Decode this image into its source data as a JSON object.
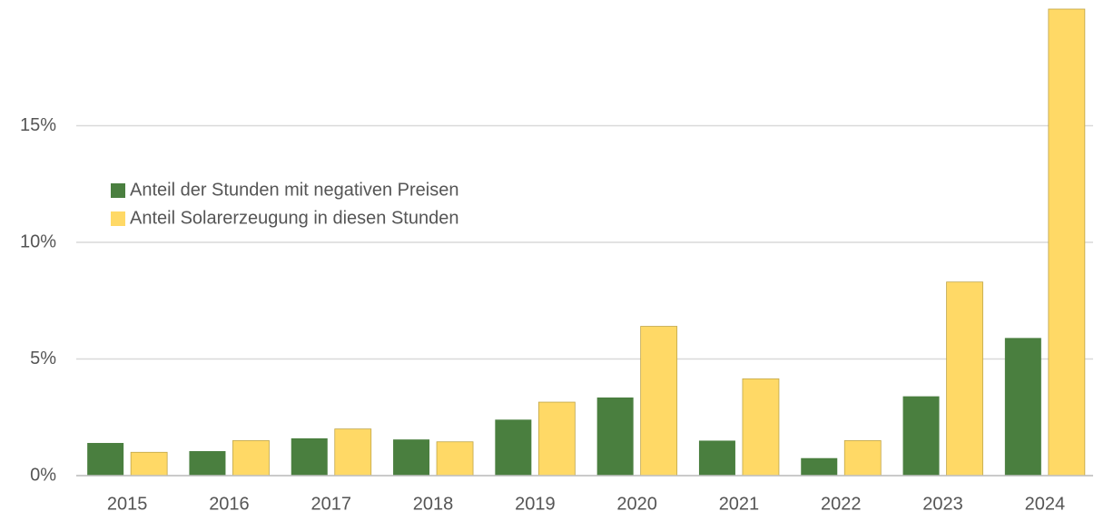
{
  "chart_data": {
    "type": "bar",
    "categories": [
      "2015",
      "2016",
      "2017",
      "2018",
      "2019",
      "2020",
      "2021",
      "2022",
      "2023",
      "2024"
    ],
    "series": [
      {
        "name": "Anteil der Stunden mit negativen Preisen",
        "color": "#4a7f3f",
        "values": [
          1.4,
          1.05,
          1.6,
          1.55,
          2.4,
          3.35,
          1.5,
          0.75,
          3.4,
          5.9
        ]
      },
      {
        "name": "Anteil Solarerzeugung in diesen Stunden",
        "color": "#ffd966",
        "values": [
          1.0,
          1.5,
          2.0,
          1.45,
          3.15,
          6.4,
          4.15,
          1.5,
          8.3,
          20.0
        ]
      }
    ],
    "ylim": [
      0,
      20
    ],
    "yticks": [
      {
        "value": 0,
        "label": "0%"
      },
      {
        "value": 5,
        "label": "5%"
      },
      {
        "value": 10,
        "label": "10%"
      },
      {
        "value": 15,
        "label": "15%"
      }
    ],
    "grid": true,
    "legend": "left"
  }
}
